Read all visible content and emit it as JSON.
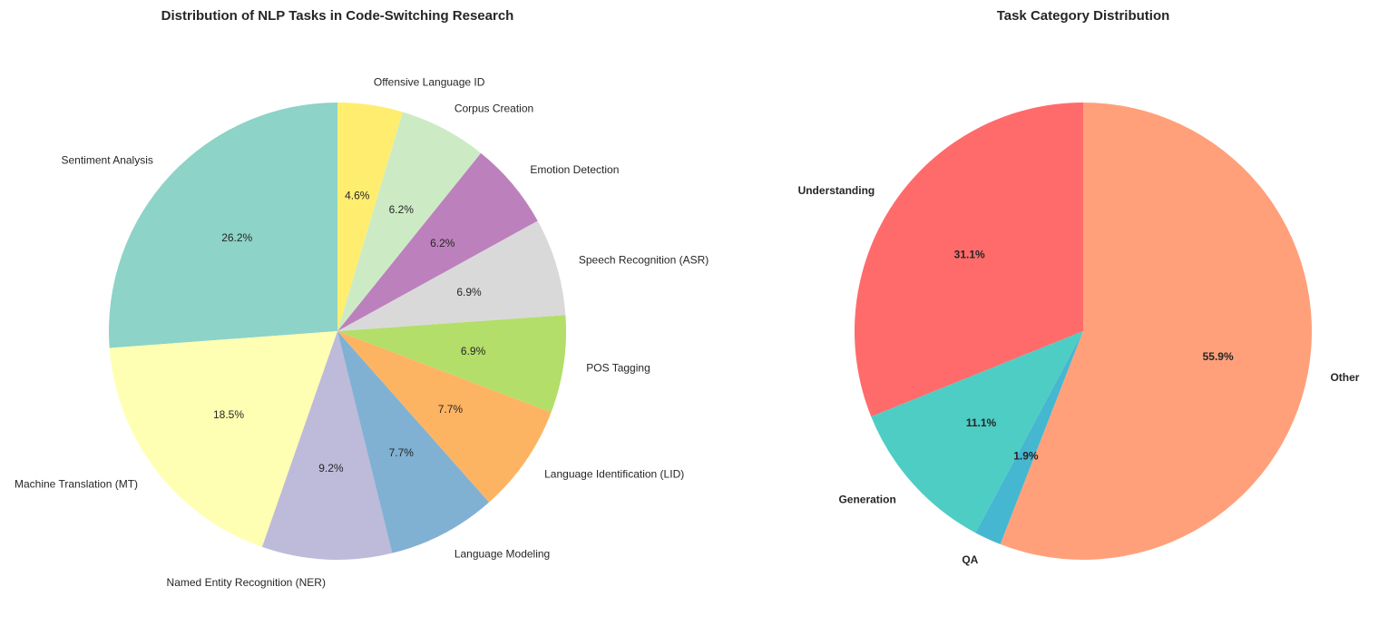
{
  "chart_data": [
    {
      "type": "pie",
      "title": "Distribution of NLP Tasks in Code-Switching Research",
      "start_angle_deg": 90,
      "direction": "counterclockwise",
      "label_weight": "normal",
      "slices": [
        {
          "label": "Sentiment Analysis",
          "value": 26.2,
          "pct_label": "26.2%",
          "color": "#8dd3c7"
        },
        {
          "label": "Machine Translation (MT)",
          "value": 18.5,
          "pct_label": "18.5%",
          "color": "#ffffb3"
        },
        {
          "label": "Named Entity Recognition (NER)",
          "value": 9.2,
          "pct_label": "9.2%",
          "color": "#bebada"
        },
        {
          "label": "Language Modeling",
          "value": 7.7,
          "pct_label": "7.7%",
          "color": "#80b1d3"
        },
        {
          "label": "Language Identification (LID)",
          "value": 7.7,
          "pct_label": "7.7%",
          "color": "#fdb462"
        },
        {
          "label": "POS Tagging",
          "value": 6.9,
          "pct_label": "6.9%",
          "color": "#b3de69"
        },
        {
          "label": "Speech Recognition (ASR)",
          "value": 6.9,
          "pct_label": "6.9%",
          "color": "#d9d9d9"
        },
        {
          "label": "Emotion Detection",
          "value": 6.2,
          "pct_label": "6.2%",
          "color": "#bc80bd"
        },
        {
          "label": "Corpus Creation",
          "value": 6.2,
          "pct_label": "6.2%",
          "color": "#ccebc5"
        },
        {
          "label": "Offensive Language ID",
          "value": 4.6,
          "pct_label": "4.6%",
          "color": "#ffed6f"
        }
      ]
    },
    {
      "type": "pie",
      "title": "Task Category Distribution",
      "start_angle_deg": 90,
      "direction": "counterclockwise",
      "label_weight": "bold",
      "slices": [
        {
          "label": "Understanding",
          "value": 31.1,
          "pct_label": "31.1%",
          "color": "#ff6b6b"
        },
        {
          "label": "Generation",
          "value": 11.1,
          "pct_label": "11.1%",
          "color": "#4ecdc4"
        },
        {
          "label": "QA",
          "value": 1.9,
          "pct_label": "1.9%",
          "color": "#45b7d1"
        },
        {
          "label": "Other",
          "value": 55.9,
          "pct_label": "55.9%",
          "color": "#ffa07a"
        }
      ]
    }
  ]
}
